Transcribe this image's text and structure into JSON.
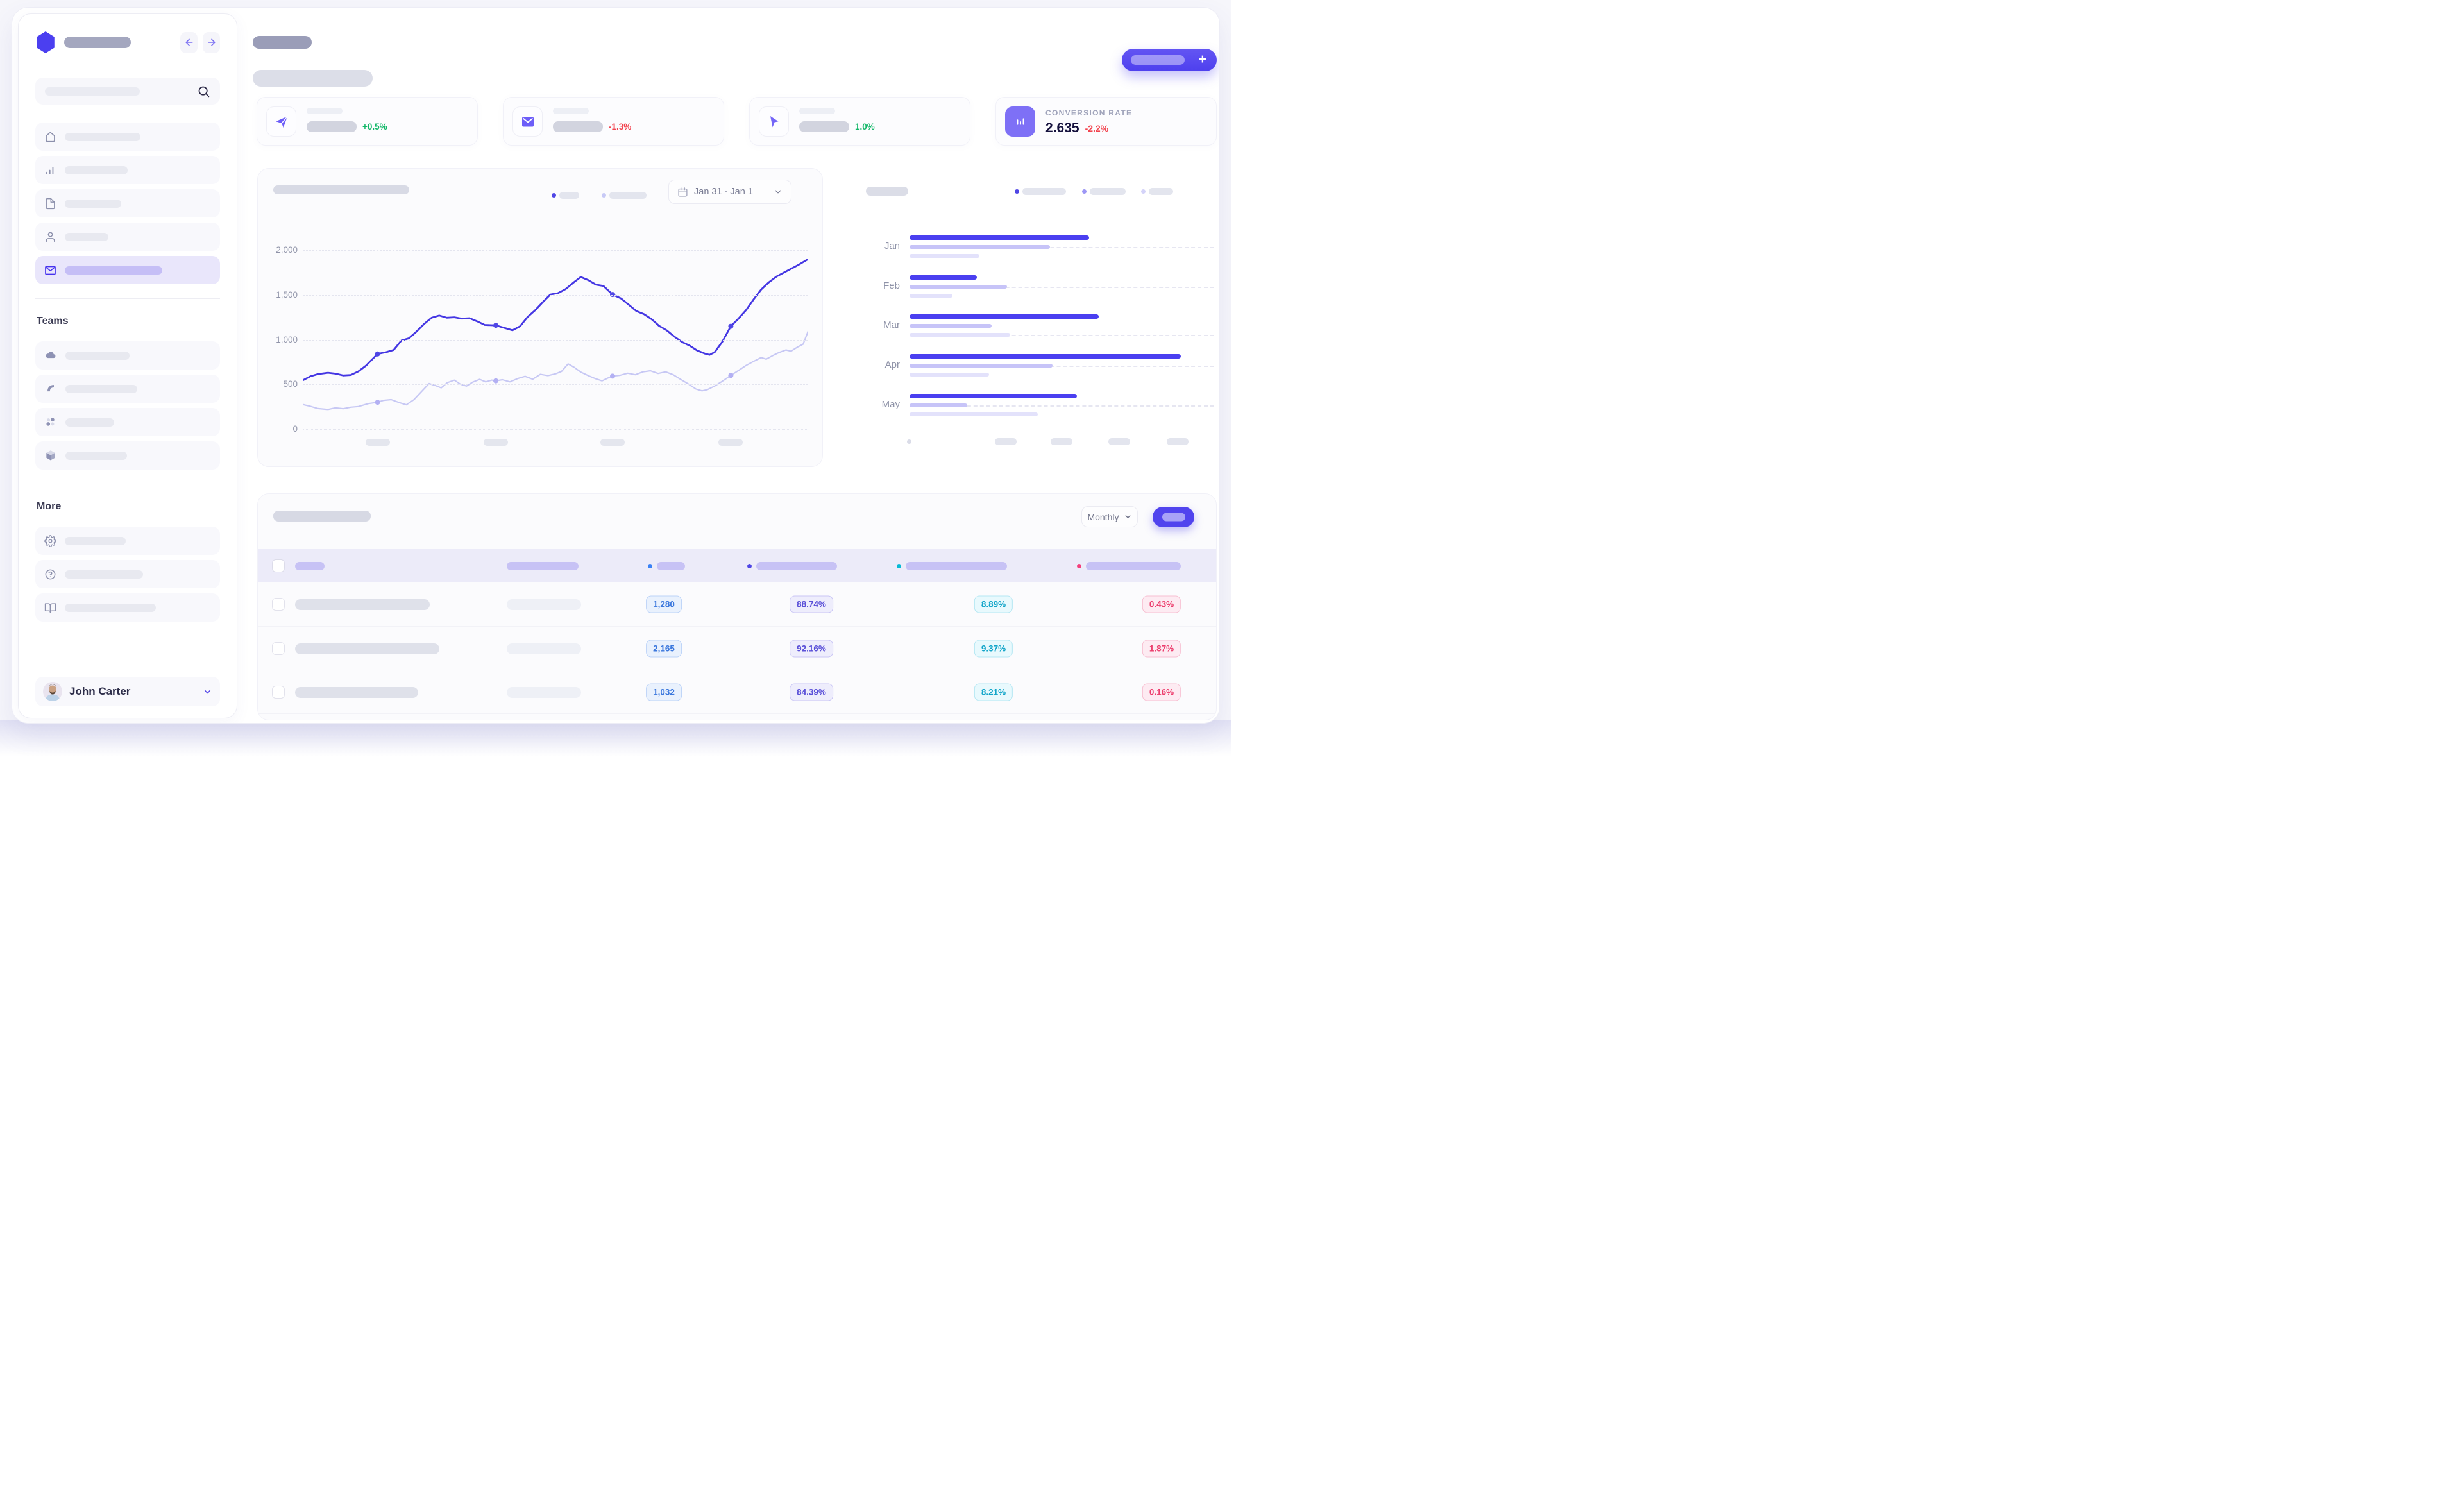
{
  "sidebar": {
    "teams_heading": "Teams",
    "more_heading": "More",
    "user_name": "John Carter"
  },
  "header": {
    "add_plus": "+"
  },
  "colors": {
    "up": "#12b768",
    "down": "#f2444f",
    "primary": "#4a3ff0"
  },
  "kpi_cards": [
    {
      "icon": "send-icon",
      "delta": "+0.5%",
      "trend": "up"
    },
    {
      "icon": "mail-icon",
      "delta": "-1.3%",
      "trend": "down"
    },
    {
      "icon": "cursor-icon",
      "delta": "1.0%",
      "trend": "up"
    },
    {
      "icon": "bar-chart-icon",
      "label": "CONVERSION RATE",
      "value": "2.635",
      "delta": "-2.2%",
      "trend": "down"
    }
  ],
  "chart_data": [
    {
      "type": "line",
      "title": "",
      "date_range": "Jan 31 - Jan 1",
      "ylim": [
        0,
        2000
      ],
      "ytick_labels": [
        "2,000",
        "1,500",
        "1,000",
        "500",
        "0"
      ],
      "yticks": [
        2000,
        1500,
        1000,
        500,
        0
      ],
      "grid": "horizontal-dashed + 4 vertical lines",
      "legend_position": "top-center",
      "marker_x": [
        0.148,
        0.382,
        0.613,
        0.847
      ],
      "markers": [
        {
          "x": 0.148,
          "s1": 840,
          "s2": 300
        },
        {
          "x": 0.382,
          "s1": 1160,
          "s2": 540
        },
        {
          "x": 0.613,
          "s1": 1505,
          "s2": 592
        },
        {
          "x": 0.847,
          "s1": 1150,
          "s2": 600
        }
      ],
      "series": [
        {
          "name": "series-1",
          "color": "#4537e3",
          "dot_color": "#4f46e5",
          "points": [
            [
              0,
              545
            ],
            [
              0.015,
              590
            ],
            [
              0.03,
              615
            ],
            [
              0.05,
              630
            ],
            [
              0.065,
              620
            ],
            [
              0.08,
              600
            ],
            [
              0.095,
              605
            ],
            [
              0.11,
              645
            ],
            [
              0.125,
              710
            ],
            [
              0.148,
              840
            ],
            [
              0.165,
              860
            ],
            [
              0.18,
              885
            ],
            [
              0.195,
              990
            ],
            [
              0.21,
              1015
            ],
            [
              0.225,
              1090
            ],
            [
              0.24,
              1175
            ],
            [
              0.255,
              1245
            ],
            [
              0.27,
              1270
            ],
            [
              0.285,
              1245
            ],
            [
              0.3,
              1250
            ],
            [
              0.315,
              1235
            ],
            [
              0.33,
              1240
            ],
            [
              0.345,
              1205
            ],
            [
              0.36,
              1165
            ],
            [
              0.382,
              1160
            ],
            [
              0.4,
              1130
            ],
            [
              0.415,
              1105
            ],
            [
              0.43,
              1150
            ],
            [
              0.445,
              1255
            ],
            [
              0.46,
              1330
            ],
            [
              0.475,
              1420
            ],
            [
              0.49,
              1505
            ],
            [
              0.505,
              1520
            ],
            [
              0.52,
              1565
            ],
            [
              0.535,
              1635
            ],
            [
              0.55,
              1700
            ],
            [
              0.565,
              1665
            ],
            [
              0.58,
              1615
            ],
            [
              0.595,
              1600
            ],
            [
              0.613,
              1505
            ],
            [
              0.63,
              1460
            ],
            [
              0.645,
              1390
            ],
            [
              0.66,
              1320
            ],
            [
              0.675,
              1285
            ],
            [
              0.69,
              1230
            ],
            [
              0.705,
              1155
            ],
            [
              0.72,
              1105
            ],
            [
              0.735,
              1035
            ],
            [
              0.75,
              975
            ],
            [
              0.765,
              935
            ],
            [
              0.78,
              880
            ],
            [
              0.795,
              845
            ],
            [
              0.805,
              830
            ],
            [
              0.815,
              860
            ],
            [
              0.83,
              975
            ],
            [
              0.847,
              1150
            ],
            [
              0.862,
              1235
            ],
            [
              0.877,
              1330
            ],
            [
              0.892,
              1450
            ],
            [
              0.907,
              1560
            ],
            [
              0.922,
              1640
            ],
            [
              0.937,
              1705
            ],
            [
              0.952,
              1750
            ],
            [
              0.967,
              1795
            ],
            [
              0.982,
              1840
            ],
            [
              1,
              1900
            ]
          ]
        },
        {
          "name": "series-2",
          "color": "#c7c8f4",
          "dot_color": "#b3b0f3",
          "points": [
            [
              0,
              275
            ],
            [
              0.015,
              255
            ],
            [
              0.03,
              230
            ],
            [
              0.05,
              220
            ],
            [
              0.065,
              238
            ],
            [
              0.08,
              228
            ],
            [
              0.095,
              245
            ],
            [
              0.11,
              252
            ],
            [
              0.13,
              285
            ],
            [
              0.148,
              300
            ],
            [
              0.16,
              322
            ],
            [
              0.175,
              330
            ],
            [
              0.19,
              298
            ],
            [
              0.205,
              272
            ],
            [
              0.22,
              330
            ],
            [
              0.235,
              420
            ],
            [
              0.25,
              510
            ],
            [
              0.262,
              488
            ],
            [
              0.274,
              462
            ],
            [
              0.286,
              520
            ],
            [
              0.3,
              548
            ],
            [
              0.312,
              502
            ],
            [
              0.324,
              482
            ],
            [
              0.336,
              525
            ],
            [
              0.35,
              556
            ],
            [
              0.362,
              528
            ],
            [
              0.374,
              548
            ],
            [
              0.382,
              540
            ],
            [
              0.395,
              552
            ],
            [
              0.41,
              528
            ],
            [
              0.425,
              565
            ],
            [
              0.44,
              590
            ],
            [
              0.455,
              558
            ],
            [
              0.47,
              612
            ],
            [
              0.485,
              598
            ],
            [
              0.5,
              618
            ],
            [
              0.512,
              645
            ],
            [
              0.525,
              730
            ],
            [
              0.538,
              688
            ],
            [
              0.55,
              638
            ],
            [
              0.565,
              598
            ],
            [
              0.58,
              562
            ],
            [
              0.592,
              540
            ],
            [
              0.604,
              572
            ],
            [
              0.613,
              592
            ],
            [
              0.628,
              602
            ],
            [
              0.643,
              625
            ],
            [
              0.658,
              608
            ],
            [
              0.673,
              640
            ],
            [
              0.688,
              652
            ],
            [
              0.703,
              622
            ],
            [
              0.718,
              640
            ],
            [
              0.733,
              608
            ],
            [
              0.748,
              555
            ],
            [
              0.763,
              505
            ],
            [
              0.778,
              448
            ],
            [
              0.79,
              428
            ],
            [
              0.8,
              440
            ],
            [
              0.815,
              482
            ],
            [
              0.83,
              535
            ],
            [
              0.847,
              600
            ],
            [
              0.862,
              655
            ],
            [
              0.877,
              712
            ],
            [
              0.892,
              758
            ],
            [
              0.907,
              800
            ],
            [
              0.917,
              782
            ],
            [
              0.93,
              822
            ],
            [
              0.943,
              858
            ],
            [
              0.956,
              885
            ],
            [
              0.966,
              872
            ],
            [
              0.978,
              915
            ],
            [
              0.99,
              950
            ],
            [
              1,
              1095
            ]
          ]
        }
      ]
    },
    {
      "type": "bar",
      "orientation": "horizontal",
      "title": "",
      "categories": [
        "Jan",
        "Feb",
        "Mar",
        "Apr",
        "May"
      ],
      "value_unit": "percent-of-axis-width (estimated from pixels, no numeric axis shown)",
      "legend_position": "top-right",
      "series": [
        {
          "name": "series-1",
          "color": "#4a3ff0",
          "values": [
            59,
            22,
            62,
            89,
            55
          ]
        },
        {
          "name": "series-2",
          "color": "#c7c4f8",
          "values": [
            46,
            32,
            27,
            47,
            19
          ]
        },
        {
          "name": "series-3",
          "color": "#e3e2fb",
          "values": [
            23,
            14,
            33,
            26,
            42
          ]
        }
      ],
      "dashed_track_series": [
        1,
        1,
        2,
        1,
        1
      ]
    }
  ],
  "table": {
    "period_label": "Monthly",
    "columns": [
      {
        "key": "c3",
        "dot": "#3b82f6",
        "text": "#3c78dd",
        "bg": "#e9f1fd",
        "border": "#bcd3f8"
      },
      {
        "key": "c4",
        "dot": "#4f46e5",
        "text": "#5a50d8",
        "bg": "#eeedfc",
        "border": "#c9c5f5"
      },
      {
        "key": "c5",
        "dot": "#08bad6",
        "text": "#12a5c9",
        "bg": "#e8f9fd",
        "border": "#b5e7f3"
      },
      {
        "key": "c6",
        "dot": "#f43f7c",
        "text": "#ec3e6d",
        "bg": "#fdebf2",
        "border": "#f7bfd1"
      }
    ],
    "rows": [
      {
        "c3": "1,280",
        "c4": "88.74%",
        "c5": "8.89%",
        "c6": "0.43%"
      },
      {
        "c3": "2,165",
        "c4": "92.16%",
        "c5": "9.37%",
        "c6": "1.87%"
      },
      {
        "c3": "1,032",
        "c4": "84.39%",
        "c5": "8.21%",
        "c6": "0.16%"
      }
    ]
  }
}
